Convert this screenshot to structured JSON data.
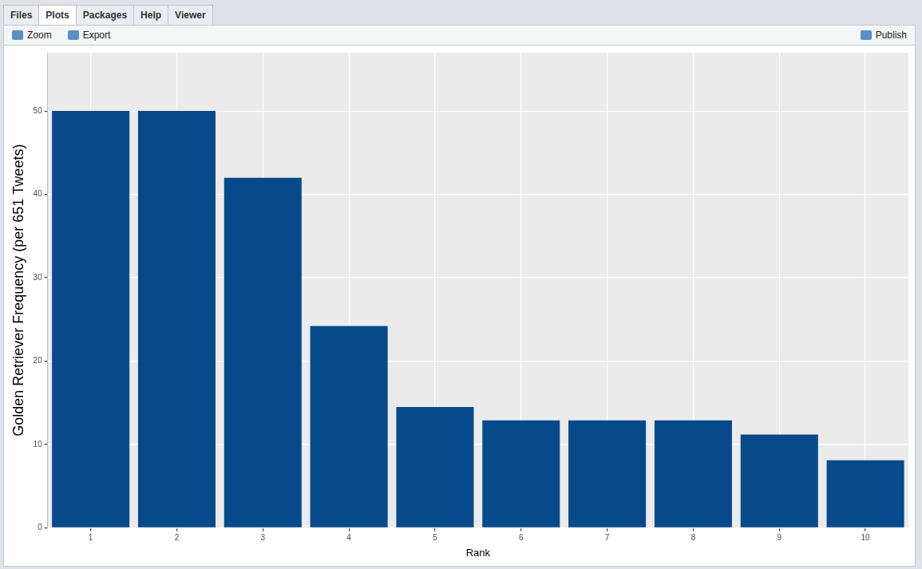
{
  "window": {
    "tabs": [
      "Files",
      "Plots",
      "Packages",
      "Help",
      "Viewer"
    ],
    "toolbar": [
      "Zoom",
      "Export",
      "Publish"
    ]
  },
  "chart_data": {
    "type": "bar",
    "x_label": "Rank",
    "y_label": "Golden Retriever Frequency (per 651 Tweets)",
    "categories": [
      "1",
      "2",
      "3",
      "4",
      "5",
      "6",
      "7",
      "8",
      "9",
      "10"
    ],
    "values": [
      50,
      50,
      42,
      24.2,
      14.5,
      12.9,
      12.9,
      12.9,
      11.2,
      8.1
    ],
    "color": "#074a8b",
    "ylim": [
      0,
      57
    ],
    "yticks": [
      0,
      10,
      20,
      30,
      40,
      50
    ],
    "grid": true
  }
}
